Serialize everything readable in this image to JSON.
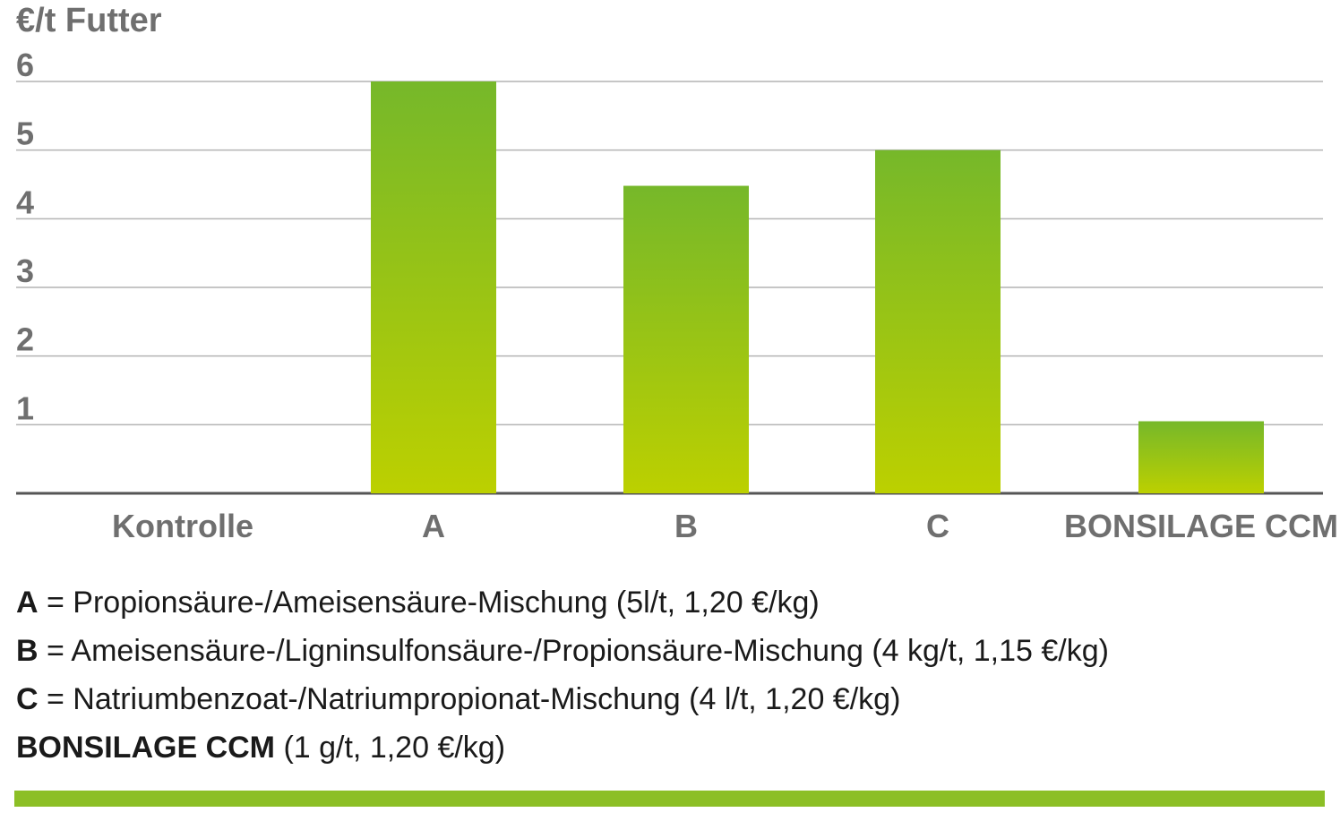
{
  "chart_data": {
    "type": "bar",
    "ylabel": "€/t Futter",
    "ylim": [
      0,
      6
    ],
    "yticks": [
      "1",
      "2",
      "3",
      "4",
      "5",
      "6"
    ],
    "categories": [
      "Kontrolle",
      "A",
      "B",
      "C",
      "BONSILAGE CCM"
    ],
    "values": [
      0,
      6.0,
      4.48,
      5.0,
      1.05
    ],
    "grid": true
  },
  "legend": {
    "items": [
      {
        "key": "A",
        "text": " = Propionsäure-/Ameisensäure-Mischung (5l/t, 1,20 €/kg)"
      },
      {
        "key": "B",
        "text": " = Ameisensäure-/Ligninsulfonsäure-/Propionsäure-Mischung (4 kg/t, 1,15 €/kg)"
      },
      {
        "key": "C",
        "text": " = Natriumbenzoat-/Natriumpropionat-Mischung (4 l/t, 1,20 €/kg)"
      },
      {
        "key": "BONSILAGE CCM",
        "text": " (1 g/t, 1,20 €/kg)"
      }
    ]
  },
  "colors": {
    "bar_top": "#76b82a",
    "bar_bottom": "#bcd000",
    "footer_bar": "#8cbf26",
    "grid": "#b4b4b4",
    "axis": "#555555",
    "label": "#6f6f6f"
  }
}
